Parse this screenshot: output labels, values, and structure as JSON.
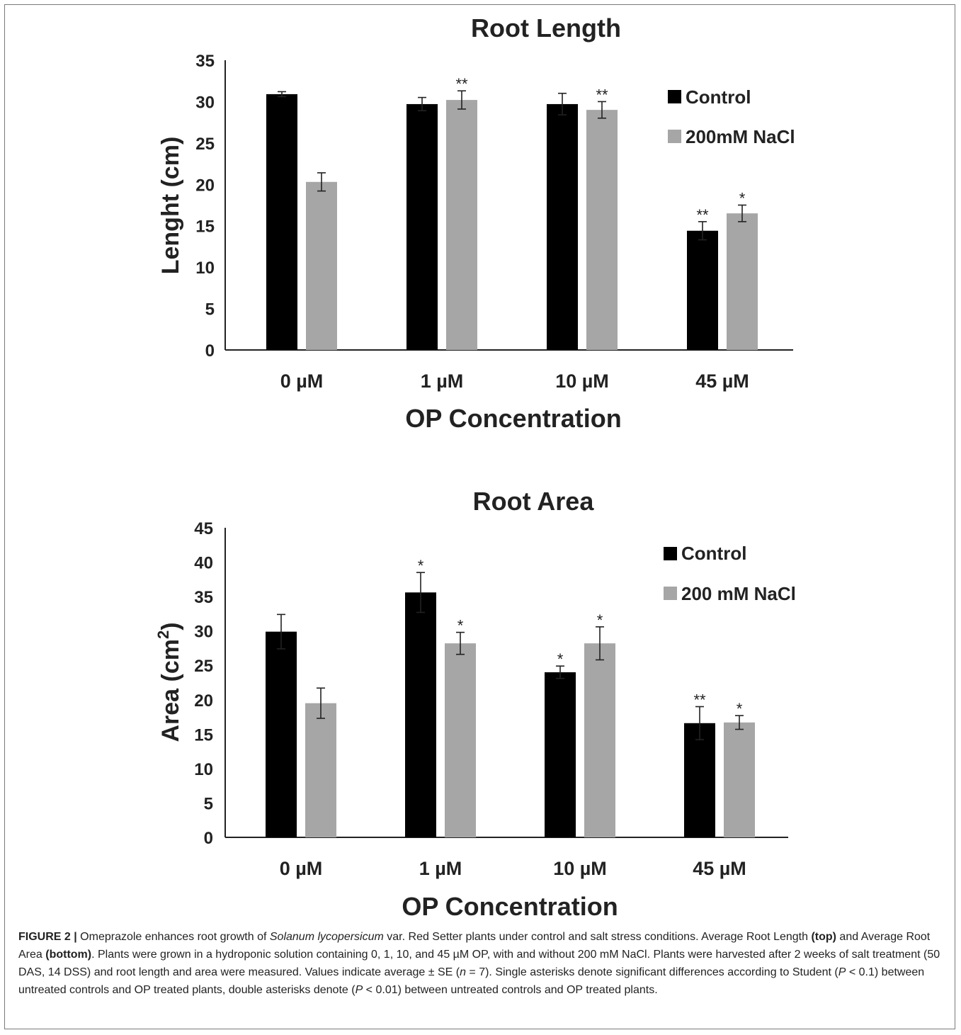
{
  "chart_data": [
    {
      "type": "bar",
      "title": "Root Length",
      "xlabel": "OP Concentration",
      "ylabel": "Lenght (cm)",
      "ylim": [
        0,
        35
      ],
      "yticks": [
        0,
        5,
        10,
        15,
        20,
        25,
        30,
        35
      ],
      "categories": [
        "0 µM",
        "1 µM",
        "10 µM",
        "45 µM"
      ],
      "legend_position": "top-right",
      "grid": false,
      "series": [
        {
          "name": "Control",
          "color": "#000000",
          "values": [
            30.9,
            29.7,
            29.7,
            14.4
          ],
          "errors": [
            0.3,
            0.8,
            1.3,
            1.1
          ],
          "annotations": [
            "",
            "",
            "",
            "**"
          ]
        },
        {
          "name": "200mM NaCl",
          "color": "#a6a6a6",
          "values": [
            20.3,
            30.2,
            29.0,
            16.5
          ],
          "errors": [
            1.1,
            1.1,
            1.0,
            1.0
          ],
          "annotations": [
            "",
            "**",
            "**",
            "*"
          ]
        }
      ]
    },
    {
      "type": "bar",
      "title": "Root Area",
      "xlabel": "OP Concentration",
      "ylabel": "Area (cm",
      "ylabel_sup": "2",
      "ylabel_end": ")",
      "ylim": [
        0,
        45
      ],
      "yticks": [
        0,
        5,
        10,
        15,
        20,
        25,
        30,
        35,
        40,
        45
      ],
      "categories": [
        "0 µM",
        "1 µM",
        "10 µM",
        "45 µM"
      ],
      "legend_position": "top-right",
      "grid": false,
      "series": [
        {
          "name": "Control",
          "color": "#000000",
          "values": [
            29.9,
            35.6,
            24.0,
            16.6
          ],
          "errors": [
            2.5,
            2.9,
            0.9,
            2.4
          ],
          "annotations": [
            "",
            "*",
            "*",
            "**"
          ]
        },
        {
          "name": "200 mM NaCl",
          "color": "#a6a6a6",
          "values": [
            19.5,
            28.2,
            28.2,
            16.7
          ],
          "errors": [
            2.2,
            1.6,
            2.4,
            1.0
          ],
          "annotations": [
            "",
            "*",
            "*",
            "*"
          ]
        }
      ]
    }
  ],
  "caption": {
    "lead": "FIGURE 2 |",
    "segments": [
      {
        "t": " Omeprazole enhances root growth of "
      },
      {
        "t": "Solanum lycopersicum",
        "s": "i"
      },
      {
        "t": " var. Red Setter plants under control and salt stress conditions. Average Root Length "
      },
      {
        "t": "(top)",
        "s": "b"
      },
      {
        "t": " and Average Root Area "
      },
      {
        "t": "(bottom)",
        "s": "b"
      },
      {
        "t": ". Plants were grown in a hydroponic solution containing 0, 1, 10, and 45 µM OP, with and without 200 mM NaCl. Plants were harvested after 2 weeks of salt treatment (50 DAS, 14 DSS) and root length and area were measured. Values indicate average ± SE ("
      },
      {
        "t": "n",
        "s": "i"
      },
      {
        "t": " = 7). Single asterisks denote significant differences according to Student ("
      },
      {
        "t": "P",
        "s": "i"
      },
      {
        "t": " < 0.1) between untreated controls and OP treated plants, double asterisks denote ("
      },
      {
        "t": "P",
        "s": "i"
      },
      {
        "t": " < 0.01) between untreated controls and OP treated plants."
      }
    ]
  }
}
